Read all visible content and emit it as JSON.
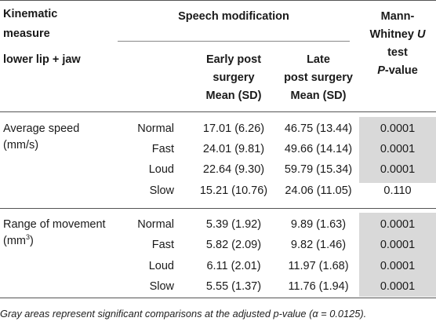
{
  "table": {
    "header": {
      "kinematic_line1": "Kinematic",
      "kinematic_line2": "measure",
      "kinematic_line3": "lower lip + jaw",
      "speech_modification": "Speech modification",
      "early_line1": "Early post",
      "early_line2": "surgery",
      "early_line3": "Mean (SD)",
      "late_line1": "Late",
      "late_line2": "post surgery",
      "late_line3": "Mean (SD)",
      "mw_line1": "Mann-",
      "mw_line2a": "Whitney ",
      "mw_line2b": "U",
      "mw_line3": "test",
      "mw_line4a": "P",
      "mw_line4b": "-value"
    },
    "groups": [
      {
        "measure_line1": "Average speed",
        "measure_line2": "(mm/s)",
        "measure_sup": "",
        "measure_close": "",
        "rows": [
          {
            "condition": "Normal",
            "early": "17.01 (6.26)",
            "late": "46.75 (13.44)",
            "p": "0.0001",
            "significant": true
          },
          {
            "condition": "Fast",
            "early": "24.01 (9.81)",
            "late": "49.66 (14.14)",
            "p": "0.0001",
            "significant": true
          },
          {
            "condition": "Loud",
            "early": "22.64 (9.30)",
            "late": "59.79 (15.34)",
            "p": "0.0001",
            "significant": true
          },
          {
            "condition": "Slow",
            "early": "15.21 (10.76)",
            "late": "24.06 (11.05)",
            "p": "0.110",
            "significant": false
          }
        ]
      },
      {
        "measure_line1": "Range of movement",
        "measure_line2": "(mm",
        "measure_sup": "3",
        "measure_close": ")",
        "rows": [
          {
            "condition": "Normal",
            "early": "5.39 (1.92)",
            "late": "9.89 (1.63)",
            "p": "0.0001",
            "significant": true
          },
          {
            "condition": "Fast",
            "early": "5.82 (2.09)",
            "late": "9.82 (1.46)",
            "p": "0.0001",
            "significant": true
          },
          {
            "condition": "Loud",
            "early": "6.11 (2.01)",
            "late": "11.97 (1.68)",
            "p": "0.0001",
            "significant": true
          },
          {
            "condition": "Slow",
            "early": "5.55 (1.37)",
            "late": "11.76 (1.94)",
            "p": "0.0001",
            "significant": true
          }
        ]
      }
    ],
    "footnote": "Gray areas represent significant comparisons at the adjusted p-value (α = 0.0125).",
    "shade_color": "#d9d9d9"
  }
}
